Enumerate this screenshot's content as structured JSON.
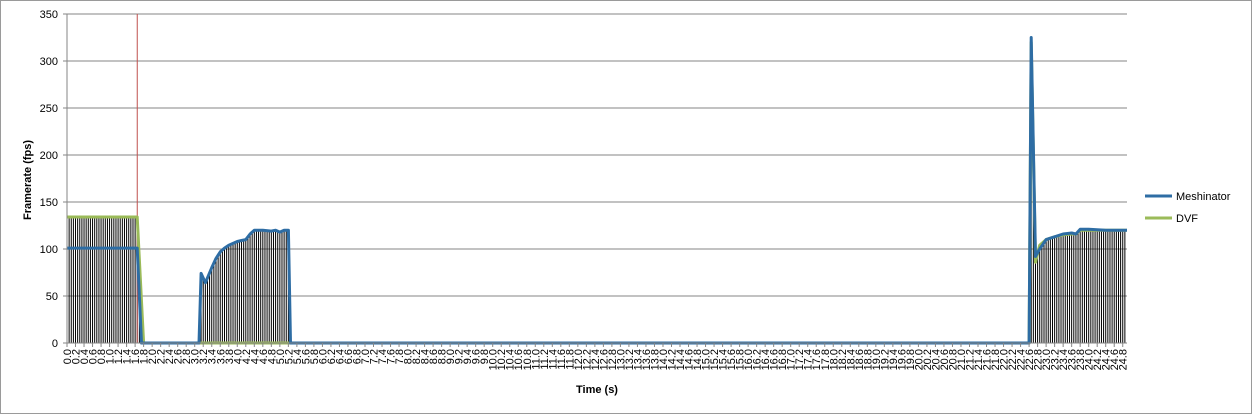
{
  "chart_data": {
    "type": "line",
    "title": "",
    "xlabel": "Time (s)",
    "ylabel": "Framerate (fps)",
    "ylim": [
      0,
      350
    ],
    "yticks": [
      0,
      50,
      100,
      150,
      200,
      250,
      300,
      350
    ],
    "xlim": [
      0,
      24.9
    ],
    "xtick_step": 0.2,
    "grid": "horizontal",
    "legend_position": "right",
    "cursor_line": {
      "x": 1.65,
      "color": "#c0504d"
    },
    "series": [
      {
        "name": "Meshinator",
        "color": "#2e6da4",
        "points": [
          [
            0.0,
            101
          ],
          [
            1.65,
            101
          ],
          [
            1.75,
            0
          ],
          [
            3.1,
            0
          ],
          [
            3.15,
            74
          ],
          [
            3.25,
            64
          ],
          [
            3.4,
            80
          ],
          [
            3.5,
            90
          ],
          [
            3.6,
            97
          ],
          [
            3.7,
            101
          ],
          [
            3.8,
            104
          ],
          [
            3.9,
            106
          ],
          [
            4.0,
            108
          ],
          [
            4.1,
            109
          ],
          [
            4.2,
            110
          ],
          [
            4.3,
            116
          ],
          [
            4.4,
            120
          ],
          [
            4.6,
            120
          ],
          [
            4.8,
            119
          ],
          [
            4.9,
            120
          ],
          [
            5.0,
            118
          ],
          [
            5.1,
            120
          ],
          [
            5.2,
            120
          ],
          [
            5.25,
            0
          ],
          [
            22.6,
            0
          ],
          [
            22.65,
            325
          ],
          [
            22.75,
            92
          ],
          [
            22.85,
            100
          ],
          [
            23.0,
            110
          ],
          [
            23.2,
            113
          ],
          [
            23.4,
            116
          ],
          [
            23.6,
            117
          ],
          [
            23.7,
            116
          ],
          [
            23.8,
            121
          ],
          [
            24.0,
            121
          ],
          [
            24.4,
            120
          ],
          [
            24.9,
            120
          ]
        ]
      },
      {
        "name": "DVF",
        "color": "#9bbb59",
        "points": [
          [
            0.0,
            134
          ],
          [
            1.65,
            134
          ],
          [
            1.8,
            0
          ],
          [
            22.6,
            0
          ],
          [
            22.65,
            320
          ],
          [
            22.75,
            86
          ],
          [
            22.85,
            104
          ],
          [
            23.0,
            110
          ],
          [
            23.2,
            113
          ],
          [
            23.4,
            115
          ],
          [
            23.6,
            116
          ],
          [
            23.7,
            116
          ],
          [
            23.8,
            120
          ],
          [
            24.0,
            120
          ],
          [
            24.4,
            120
          ],
          [
            24.9,
            120
          ]
        ]
      }
    ],
    "drop_lines": [
      {
        "from": 0.0,
        "to": 1.7,
        "step": 0.05
      },
      {
        "from": 3.15,
        "to": 5.2,
        "step": 0.05
      },
      {
        "from": 22.65,
        "to": 24.9,
        "step": 0.05
      }
    ]
  }
}
